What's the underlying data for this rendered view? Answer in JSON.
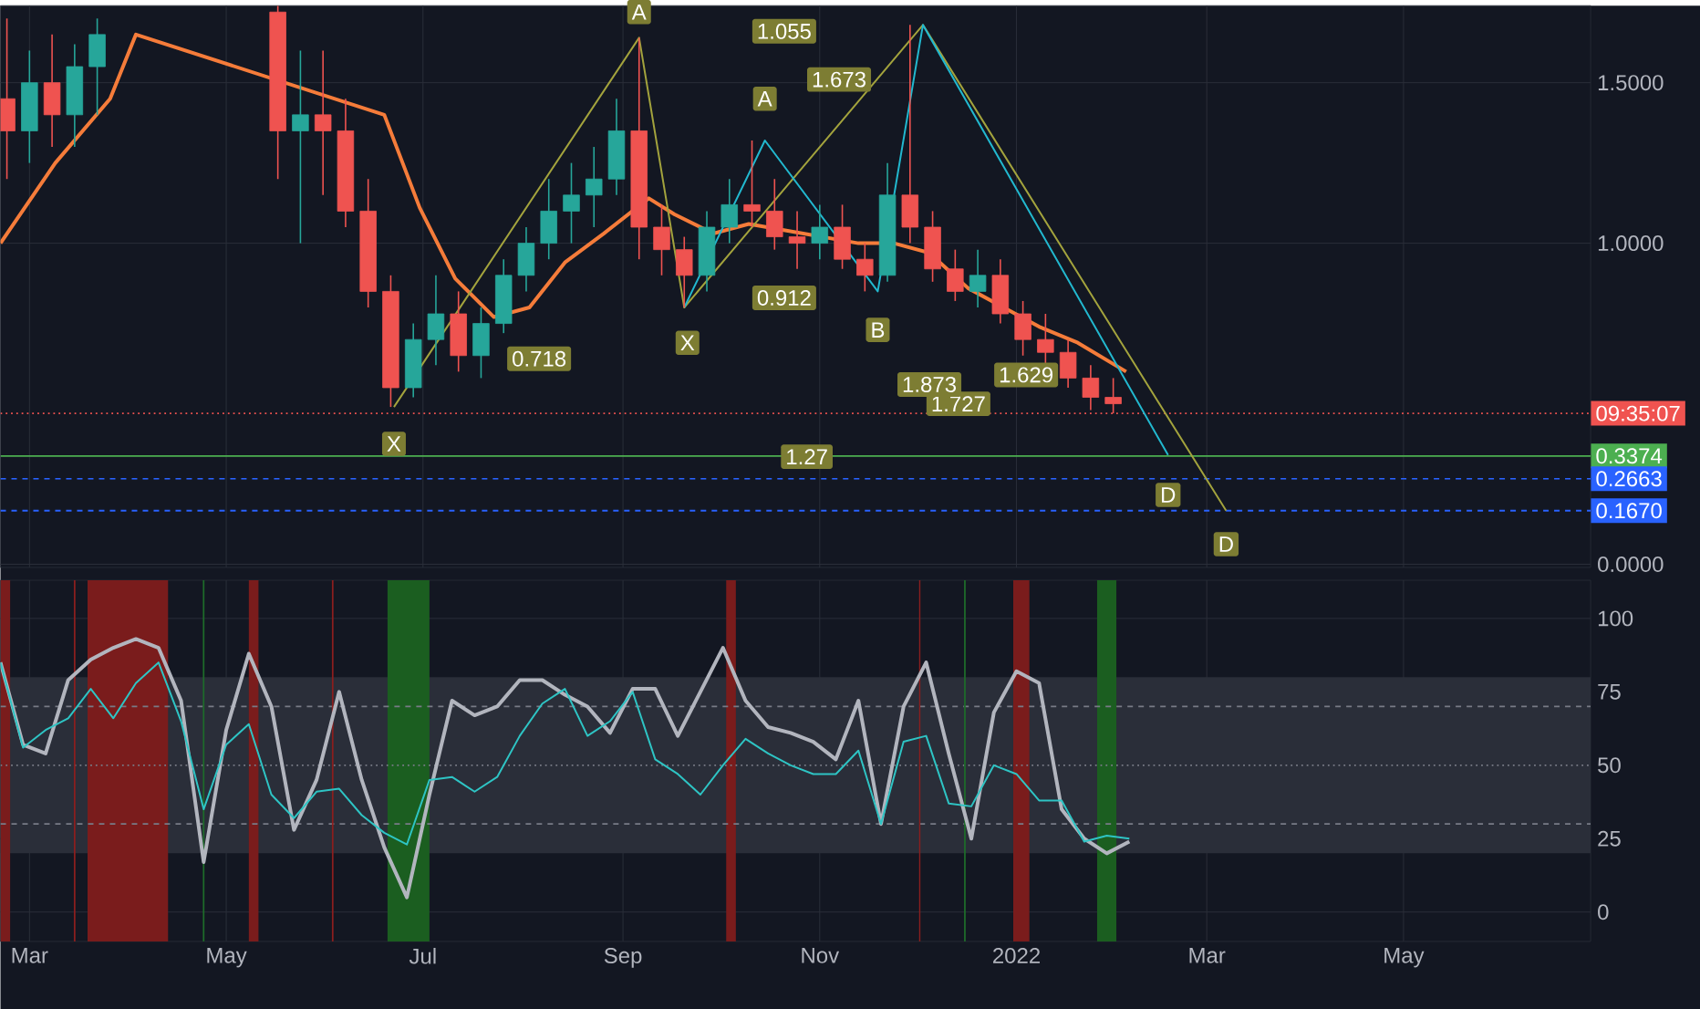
{
  "chart_data": [
    {
      "type": "candlestick",
      "tick_labels": "y",
      "grid": true,
      "xlim": [
        "2021-02-20",
        "2022-06-28"
      ],
      "ylim": [
        -0.01,
        1.74
      ],
      "xticks": [
        {
          "value": "2021-03-01",
          "label": null
        },
        {
          "value": "2021-05-01",
          "label": null
        },
        {
          "value": "2021-07-01",
          "label": null
        },
        {
          "value": "2021-09-01",
          "label": null
        },
        {
          "value": "2021-11-01",
          "label": null
        },
        {
          "value": "2022-01-01",
          "label": null
        },
        {
          "value": "2022-03-01",
          "label": null
        },
        {
          "value": "2022-05-01",
          "label": null
        }
      ],
      "yticks": [
        {
          "value": 0,
          "label": "0.0000"
        },
        {
          "value": 1,
          "label": "1.0000"
        },
        {
          "value": 1.5,
          "label": "1.5000"
        }
      ],
      "x": [
        "2021-02-22",
        "2021-03-01",
        "2021-03-08",
        "2021-03-15",
        "2021-03-22",
        "2021-05-17",
        "2021-05-24",
        "2021-05-31",
        "2021-06-07",
        "2021-06-14",
        "2021-06-21",
        "2021-06-28",
        "2021-07-05",
        "2021-07-12",
        "2021-07-19",
        "2021-07-26",
        "2021-08-02",
        "2021-08-09",
        "2021-08-16",
        "2021-08-23",
        "2021-08-30",
        "2021-09-06",
        "2021-09-13",
        "2021-09-20",
        "2021-09-27",
        "2021-10-04",
        "2021-10-11",
        "2021-10-18",
        "2021-10-25",
        "2021-11-01",
        "2021-11-08",
        "2021-11-15",
        "2021-11-22",
        "2021-11-29",
        "2021-12-06",
        "2021-12-13",
        "2021-12-20",
        "2021-12-27",
        "2022-01-03",
        "2022-01-10",
        "2022-01-17",
        "2022-01-24",
        "2022-01-31"
      ],
      "ohlc": [
        [
          1.45,
          1.7,
          1.2,
          1.35
        ],
        [
          1.35,
          1.6,
          1.25,
          1.5
        ],
        [
          1.5,
          1.65,
          1.3,
          1.4
        ],
        [
          1.4,
          1.62,
          1.3,
          1.55
        ],
        [
          1.55,
          1.7,
          1.4,
          1.65
        ],
        [
          1.72,
          1.74,
          1.2,
          1.35
        ],
        [
          1.35,
          1.6,
          1.0,
          1.4
        ],
        [
          1.4,
          1.6,
          1.15,
          1.35
        ],
        [
          1.35,
          1.45,
          1.05,
          1.1
        ],
        [
          1.1,
          1.2,
          0.8,
          0.85
        ],
        [
          0.85,
          0.9,
          0.49,
          0.55
        ],
        [
          0.55,
          0.75,
          0.52,
          0.7
        ],
        [
          0.7,
          0.9,
          0.62,
          0.78
        ],
        [
          0.78,
          0.85,
          0.6,
          0.65
        ],
        [
          0.65,
          0.8,
          0.58,
          0.75
        ],
        [
          0.75,
          0.95,
          0.72,
          0.9
        ],
        [
          0.9,
          1.05,
          0.85,
          1.0
        ],
        [
          1.0,
          1.2,
          0.95,
          1.1
        ],
        [
          1.1,
          1.25,
          1.0,
          1.15
        ],
        [
          1.15,
          1.3,
          1.05,
          1.2
        ],
        [
          1.2,
          1.45,
          1.15,
          1.35
        ],
        [
          1.35,
          1.64,
          0.95,
          1.05
        ],
        [
          1.05,
          1.12,
          0.9,
          0.98
        ],
        [
          0.98,
          1.02,
          0.8,
          0.9
        ],
        [
          0.9,
          1.1,
          0.85,
          1.05
        ],
        [
          1.05,
          1.2,
          1.0,
          1.12
        ],
        [
          1.12,
          1.32,
          1.05,
          1.1
        ],
        [
          1.1,
          1.2,
          0.98,
          1.02
        ],
        [
          1.02,
          1.1,
          0.92,
          1.0
        ],
        [
          1.0,
          1.12,
          0.95,
          1.05
        ],
        [
          1.05,
          1.12,
          0.92,
          0.95
        ],
        [
          0.95,
          1.0,
          0.85,
          0.9
        ],
        [
          0.9,
          1.25,
          0.88,
          1.15
        ],
        [
          1.15,
          1.68,
          1.0,
          1.05
        ],
        [
          1.05,
          1.1,
          0.88,
          0.92
        ],
        [
          0.92,
          0.98,
          0.82,
          0.85
        ],
        [
          0.85,
          0.98,
          0.8,
          0.9
        ],
        [
          0.9,
          0.95,
          0.75,
          0.78
        ],
        [
          0.78,
          0.82,
          0.65,
          0.7
        ],
        [
          0.7,
          0.78,
          0.62,
          0.66
        ],
        [
          0.66,
          0.7,
          0.55,
          0.58
        ],
        [
          0.58,
          0.62,
          0.48,
          0.52
        ],
        [
          0.52,
          0.58,
          0.47,
          0.5
        ]
      ],
      "series": [
        {
          "type": "line",
          "color": "#f57c3a",
          "x": [
            "2021-02-20",
            "2021-03-09",
            "2021-03-26",
            "2021-04-03",
            "2021-06-19",
            "2021-06-30",
            "2021-07-11",
            "2021-07-23",
            "2021-08-03",
            "2021-08-14",
            "2021-08-26",
            "2021-09-09",
            "2021-09-17",
            "2021-09-29",
            "2021-10-10",
            "2021-10-27",
            "2021-11-13",
            "2021-11-24",
            "2021-12-05",
            "2021-12-17",
            "2021-12-28",
            "2022-01-08",
            "2022-01-20",
            "2022-02-04"
          ],
          "values": [
            1.0,
            1.25,
            1.45,
            1.65,
            1.4,
            1.11,
            0.89,
            0.77,
            0.8,
            0.94,
            1.03,
            1.14,
            1.09,
            1.03,
            1.06,
            1.03,
            1.0,
            1.0,
            0.97,
            0.86,
            0.8,
            0.74,
            0.69,
            0.6
          ]
        },
        {
          "type": "line",
          "color": "#a3a33d",
          "x": [
            "2021-06-22",
            "2021-09-06",
            "2021-09-20",
            "2021-12-03",
            "2022-03-07"
          ],
          "values": [
            0.49,
            1.64,
            0.8,
            1.68,
            0.167
          ]
        },
        {
          "type": "line",
          "color": "#22b8cf",
          "x": [
            "2021-09-20",
            "2021-10-15",
            "2021-11-19",
            "2021-12-03",
            "2022-02-17"
          ],
          "values": [
            0.8,
            1.32,
            0.85,
            1.68,
            0.34
          ]
        }
      ],
      "ref_lines": [
        {
          "axis": "y",
          "value": 0.47,
          "color": "#f05350",
          "line_style": "dotted"
        },
        {
          "axis": "y",
          "value": 0.3374,
          "label": "0.3374",
          "color": "#4caf50",
          "line_style": "solid"
        },
        {
          "axis": "y",
          "value": 0.2663,
          "label": "0.2663",
          "color": "#2962ff",
          "line_style": "dashed"
        },
        {
          "axis": "y",
          "value": 0.167,
          "label": "0.1670",
          "color": "#2962ff",
          "line_style": "dashed"
        }
      ],
      "annotations": [
        "09:35:07",
        {
          "text": "X",
          "x": "2021-06-22",
          "y": 0.375
        },
        {
          "text": "A",
          "x": "2021-09-06",
          "y": 1.72
        },
        {
          "text": "1.055",
          "x": "2021-10-21",
          "y": 1.66
        },
        {
          "text": "0.718",
          "x": "2021-08-06",
          "y": 0.64
        },
        {
          "text": "1.727",
          "x": "2021-12-14",
          "y": 0.5
        },
        {
          "text": "1.27",
          "x": "2021-10-28",
          "y": 0.335
        },
        {
          "text": "D",
          "x": "2022-03-07",
          "y": 0.0625
        },
        {
          "text": "A",
          "x": "2021-10-15",
          "y": 1.45
        },
        {
          "text": "1.673",
          "x": "2021-11-07",
          "y": 1.51
        },
        {
          "text": "0.912",
          "x": "2021-10-21",
          "y": 0.83
        },
        {
          "text": "X",
          "x": "2021-09-21",
          "y": 0.69
        },
        {
          "text": "B",
          "x": "2021-11-19",
          "y": 0.73
        },
        {
          "text": "1.873",
          "x": "2021-12-05",
          "y": 0.56
        },
        {
          "text": "1.629",
          "x": "2022-01-04",
          "y": 0.59
        },
        {
          "text": "D",
          "x": "2022-02-17",
          "y": 0.216
        }
      ]
    },
    {
      "type": "line",
      "grid": true,
      "xlim": [
        "2021-02-20",
        "2022-06-28"
      ],
      "ylim": [
        -10,
        113
      ],
      "xticks": [
        {
          "value": "2021-03-01",
          "label": "Mar"
        },
        {
          "value": "2021-05-01",
          "label": "May"
        },
        {
          "value": "2021-07-01",
          "label": "Jul"
        },
        {
          "value": "2021-09-01",
          "label": "Sep"
        },
        {
          "value": "2021-11-01",
          "label": "Nov"
        },
        {
          "value": "2022-01-01",
          "label": "2022"
        },
        {
          "value": "2022-03-01",
          "label": "Mar"
        },
        {
          "value": "2022-05-01",
          "label": "May"
        }
      ],
      "yticks": [
        0,
        25,
        50,
        75,
        100
      ],
      "x": [
        "2021-02-20",
        "2021-02-27",
        "2021-03-06",
        "2021-03-13",
        "2021-03-20",
        "2021-03-27",
        "2021-04-03",
        "2021-04-10",
        "2021-04-17",
        "2021-04-24",
        "2021-05-01",
        "2021-05-08",
        "2021-05-15",
        "2021-05-22",
        "2021-05-29",
        "2021-06-05",
        "2021-06-12",
        "2021-06-19",
        "2021-06-26",
        "2021-07-03",
        "2021-07-10",
        "2021-07-17",
        "2021-07-24",
        "2021-07-31",
        "2021-08-07",
        "2021-08-14",
        "2021-08-21",
        "2021-08-28",
        "2021-09-04",
        "2021-09-11",
        "2021-09-18",
        "2021-09-25",
        "2021-10-02",
        "2021-10-09",
        "2021-10-16",
        "2021-10-23",
        "2021-10-30",
        "2021-11-06",
        "2021-11-13",
        "2021-11-20",
        "2021-11-27",
        "2021-12-04",
        "2021-12-11",
        "2021-12-18",
        "2021-12-25",
        "2022-01-01",
        "2022-01-08",
        "2022-01-15",
        "2022-01-22",
        "2022-01-29",
        "2022-02-05"
      ],
      "series": [
        {
          "color": "#b2b5be",
          "values": [
            85,
            57,
            54,
            79,
            86,
            90,
            93,
            90,
            72,
            17,
            62,
            88,
            70,
            28,
            45,
            75,
            45,
            22,
            5,
            40,
            72,
            67,
            70,
            79,
            79,
            74,
            70,
            61,
            76,
            76,
            60,
            75,
            90,
            72,
            63,
            61,
            58,
            52,
            72,
            30,
            70,
            85,
            54,
            25,
            68,
            82,
            78,
            35,
            25,
            20,
            24
          ]
        },
        {
          "color": "#2ec4c4",
          "values": [
            85,
            56,
            62,
            66,
            76,
            66,
            78,
            85,
            65,
            35,
            57,
            64,
            40,
            32,
            41,
            42,
            33,
            27,
            23,
            45,
            46,
            41,
            46,
            60,
            71,
            76,
            60,
            65,
            75,
            52,
            47,
            40,
            50,
            59,
            54,
            50,
            47,
            47,
            55,
            30,
            58,
            60,
            37,
            36,
            50,
            47,
            38,
            38,
            24,
            26,
            25
          ]
        }
      ],
      "bands": [
        {
          "axis": "y",
          "from": 20,
          "to": 80,
          "color": "#2a2e39"
        },
        {
          "axis": "x",
          "from": "2021-02-20",
          "to": "2021-02-23",
          "color": "#7a1c1c"
        },
        {
          "axis": "x",
          "from": "2021-03-19",
          "to": "2021-04-13",
          "color": "#7a1c1c"
        },
        {
          "axis": "x",
          "from": "2021-05-08",
          "to": "2021-05-11",
          "color": "#7a1c1c"
        },
        {
          "axis": "x",
          "from": "2021-10-03",
          "to": "2021-10-06",
          "color": "#7a1c1c"
        },
        {
          "axis": "x",
          "from": "2021-12-31",
          "to": "2022-01-05",
          "color": "#7a1c1c"
        },
        {
          "axis": "x",
          "from": "2021-06-20",
          "to": "2021-07-03",
          "color": "#1b5e20"
        },
        {
          "axis": "x",
          "from": "2022-01-26",
          "to": "2022-02-01",
          "color": "#1b5e20"
        }
      ],
      "ref_lines": [
        {
          "axis": "y",
          "value": 70,
          "color": "#787b86",
          "line_style": "dashed"
        },
        {
          "axis": "y",
          "value": 50,
          "color": "#787b86",
          "line_style": "dotted"
        },
        {
          "axis": "y",
          "value": 30,
          "color": "#787b86",
          "line_style": "dashed"
        },
        {
          "axis": "x",
          "value": "2021-03-15",
          "color": "#8b1e1e",
          "line_style": "solid"
        },
        {
          "axis": "x",
          "value": "2021-06-03",
          "color": "#8b1e1e",
          "line_style": "solid"
        },
        {
          "axis": "x",
          "value": "2021-12-02",
          "color": "#8b1e1e",
          "line_style": "solid"
        },
        {
          "axis": "x",
          "value": "2021-04-24",
          "color": "#1e6b2a",
          "line_style": "solid"
        },
        {
          "axis": "x",
          "value": "2021-12-16",
          "color": "#1e6b2a",
          "line_style": "solid"
        }
      ]
    }
  ]
}
